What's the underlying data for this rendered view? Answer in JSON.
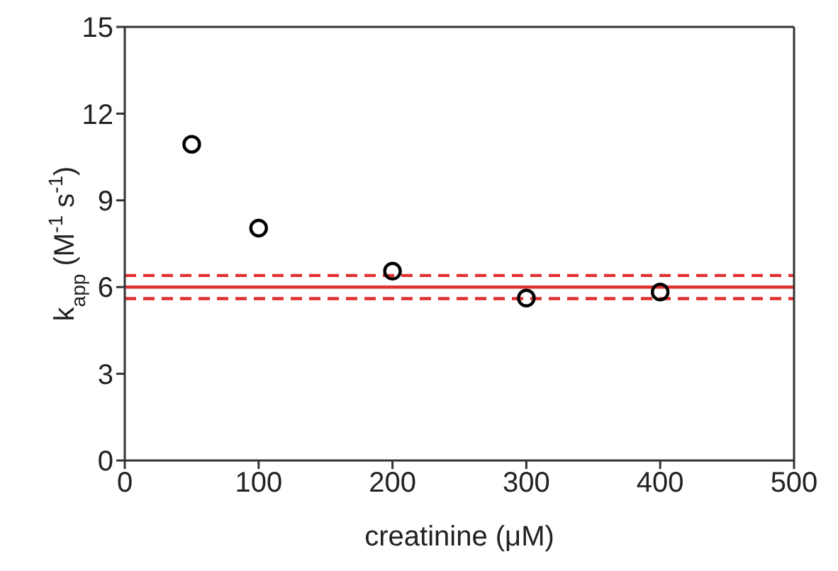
{
  "chart_data": {
    "type": "scatter",
    "xlabel": "creatinine (μM)",
    "ylabel": "k$_{app}$ (M$^{-1}$ s$^{-1}$)",
    "x": [
      50,
      100,
      200,
      300,
      400
    ],
    "series": [
      {
        "color": "#000000",
        "values": [
          10.94,
          8.04,
          6.55,
          5.62,
          5.83
        ]
      }
    ],
    "marker": "circle",
    "xlim": [
      0,
      500
    ],
    "xticks": [
      0,
      100,
      200,
      300,
      400,
      500
    ],
    "ylim": [
      0,
      15
    ],
    "yticks": [
      0,
      3,
      6,
      9,
      12,
      15
    ],
    "ref_lines": [
      {
        "axis": "y",
        "value": 6,
        "color": "#e03030",
        "line_style": "solid"
      },
      {
        "axis": "y",
        "value": 6.4,
        "color": "#e03030",
        "line_style": "dashed"
      },
      {
        "axis": "y",
        "value": 5.6,
        "color": "#e03030",
        "line_style": "dashed"
      }
    ]
  }
}
